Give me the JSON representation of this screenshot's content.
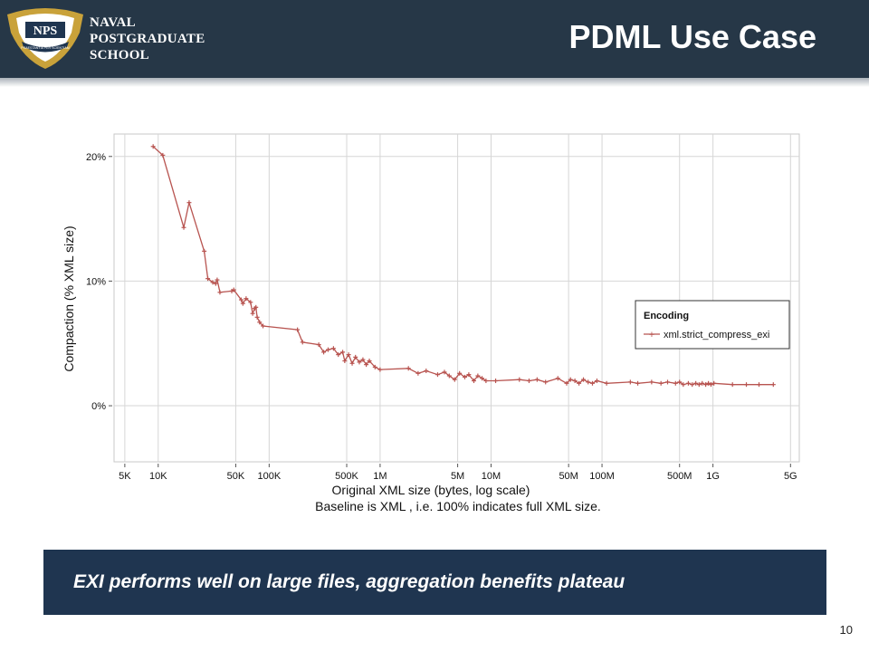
{
  "header": {
    "logo_text": [
      "NAVAL",
      "POSTGRADUATE",
      "SCHOOL"
    ],
    "logo_badge": "NPS",
    "logo_motto": "PRAESTANTIA PER SCIENTIAM",
    "title": "PDML Use Case"
  },
  "banner": {
    "text": "EXI performs well on large files, aggregation benefits plateau"
  },
  "page_number": "10",
  "colors": {
    "header_bg": "#263747",
    "banner_bg": "#1f3550",
    "series": "#b85450"
  },
  "chart_data": {
    "type": "line",
    "xscale": "log",
    "xlim": [
      4000,
      6000000000
    ],
    "ylim": [
      -4.5,
      21.8
    ],
    "x_ticks": [
      {
        "label": "5K",
        "value": 5000
      },
      {
        "label": "10K",
        "value": 10000
      },
      {
        "label": "50K",
        "value": 50000
      },
      {
        "label": "100K",
        "value": 100000
      },
      {
        "label": "500K",
        "value": 500000
      },
      {
        "label": "1M",
        "value": 1000000
      },
      {
        "label": "5M",
        "value": 5000000
      },
      {
        "label": "10M",
        "value": 10000000
      },
      {
        "label": "50M",
        "value": 50000000
      },
      {
        "label": "100M",
        "value": 100000000
      },
      {
        "label": "500M",
        "value": 500000000
      },
      {
        "label": "1G",
        "value": 1000000000
      },
      {
        "label": "5G",
        "value": 5000000000
      }
    ],
    "y_ticks": [
      {
        "label": "20%",
        "value": 20
      },
      {
        "label": "10%",
        "value": 10
      },
      {
        "label": "0%",
        "value": 0
      }
    ],
    "xlabel": "Original  XML  size (bytes, log scale)",
    "xlabel2": "Baseline is  XML , i.e. 100% indicates full  XML  size.",
    "ylabel": "Compaction (%  XML  size)",
    "grid": true,
    "legend": {
      "title": "Encoding",
      "placement": "right"
    },
    "series": [
      {
        "name": "xml.strict_compress_exi",
        "x": [
          9000,
          11000,
          17000,
          19000,
          26000,
          28000,
          31000,
          33000,
          34000,
          36000,
          46000,
          48000,
          56000,
          58000,
          62000,
          68000,
          71000,
          74000,
          76000,
          78000,
          82000,
          88000,
          180000,
          200000,
          280000,
          310000,
          340000,
          380000,
          420000,
          460000,
          480000,
          520000,
          560000,
          600000,
          650000,
          700000,
          750000,
          800000,
          900000,
          1000000,
          1800000,
          2200000,
          2600000,
          3300000,
          3800000,
          4200000,
          4700000,
          5200000,
          5800000,
          6300000,
          7000000,
          7600000,
          8300000,
          9000000,
          11000000,
          18000000,
          22000000,
          26000000,
          31000000,
          40000000,
          48000000,
          52000000,
          57000000,
          62000000,
          68000000,
          75000000,
          82000000,
          90000000,
          110000000,
          180000000,
          210000000,
          280000000,
          340000000,
          390000000,
          460000000,
          500000000,
          540000000,
          600000000,
          650000000,
          700000000,
          750000000,
          800000000,
          860000000,
          910000000,
          960000000,
          1020000000,
          1500000000,
          2000000000,
          2600000000,
          3500000000
        ],
        "y": [
          20.8,
          20.1,
          14.3,
          16.3,
          12.4,
          10.2,
          9.9,
          9.8,
          10.1,
          9.1,
          9.2,
          9.3,
          8.5,
          8.2,
          8.6,
          8.3,
          7.4,
          7.8,
          7.9,
          7.1,
          6.7,
          6.4,
          6.1,
          5.1,
          4.9,
          4.3,
          4.5,
          4.6,
          4.1,
          4.3,
          3.6,
          4.1,
          3.4,
          3.9,
          3.5,
          3.7,
          3.3,
          3.6,
          3.1,
          2.9,
          3.0,
          2.6,
          2.8,
          2.5,
          2.7,
          2.4,
          2.1,
          2.6,
          2.3,
          2.5,
          2.0,
          2.4,
          2.2,
          2.0,
          2.0,
          2.1,
          2.0,
          2.1,
          1.9,
          2.2,
          1.8,
          2.1,
          2.0,
          1.8,
          2.1,
          1.9,
          1.8,
          2.0,
          1.8,
          1.9,
          1.8,
          1.9,
          1.8,
          1.9,
          1.8,
          1.9,
          1.7,
          1.8,
          1.7,
          1.8,
          1.7,
          1.8,
          1.7,
          1.8,
          1.7,
          1.8,
          1.7,
          1.7,
          1.7,
          1.7
        ]
      }
    ]
  }
}
